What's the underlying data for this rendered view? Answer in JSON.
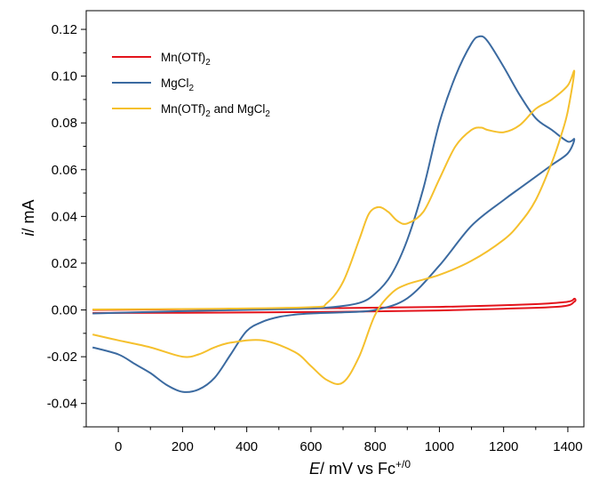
{
  "chart_data": {
    "type": "line",
    "title": "",
    "xlabel": {
      "italic": "E",
      "rest": "/ mV vs Fc",
      "sup": "+/0"
    },
    "ylabel": {
      "italic": "i",
      "rest": "/ mA"
    },
    "xlim": [
      -100,
      1450
    ],
    "ylim": [
      -0.05,
      0.128
    ],
    "xticks": [
      0,
      200,
      400,
      600,
      800,
      1000,
      1200,
      1400
    ],
    "xtick_labels": [
      "0",
      "200",
      "400",
      "600",
      "800",
      "1000",
      "1200",
      "1400"
    ],
    "yticks": [
      -0.04,
      -0.02,
      0.0,
      0.02,
      0.04,
      0.06,
      0.08,
      0.1,
      0.12
    ],
    "ytick_labels": [
      "-0.04",
      "-0.02",
      "0.00",
      "0.02",
      "0.04",
      "0.06",
      "0.08",
      "0.10",
      "0.12"
    ],
    "grid": false,
    "legend_position": "top-left",
    "series": [
      {
        "name": "Mn(OTf)2",
        "legend": {
          "a": "Mn(OTf)",
          "sub": "2",
          "b": "",
          "sub2": ""
        },
        "color": "#e3141c",
        "x": [
          -80,
          200,
          600,
          1000,
          1300,
          1400,
          1420,
          1420,
          1380,
          1200,
          1000,
          800,
          600,
          200,
          -80
        ],
        "y": [
          0.0,
          0.0003,
          0.0007,
          0.0013,
          0.0025,
          0.0035,
          0.0048,
          0.0035,
          0.0015,
          0.0005,
          -0.0002,
          -0.0006,
          -0.0009,
          -0.0012,
          -0.0013
        ]
      },
      {
        "name": "MgCl2",
        "legend": {
          "a": "MgCl",
          "sub": "2",
          "b": "",
          "sub2": ""
        },
        "color": "#3b6aa0",
        "x": [
          -80,
          200,
          500,
          650,
          750,
          800,
          850,
          900,
          950,
          1000,
          1050,
          1100,
          1125,
          1150,
          1200,
          1250,
          1300,
          1350,
          1400,
          1420,
          1400,
          1350,
          1300,
          1250,
          1200,
          1100,
          1000,
          900,
          800,
          700,
          600,
          550,
          500,
          450,
          400,
          350,
          300,
          250,
          200,
          150,
          100,
          50,
          0,
          -80
        ],
        "y": [
          -0.0015,
          -0.0005,
          0.0003,
          0.001,
          0.003,
          0.007,
          0.015,
          0.03,
          0.052,
          0.08,
          0.1,
          0.114,
          0.117,
          0.115,
          0.104,
          0.092,
          0.082,
          0.077,
          0.072,
          0.073,
          0.067,
          0.062,
          0.057,
          0.052,
          0.047,
          0.036,
          0.019,
          0.005,
          0.0,
          -0.001,
          -0.0015,
          -0.002,
          -0.003,
          -0.005,
          -0.009,
          -0.019,
          -0.029,
          -0.034,
          -0.035,
          -0.032,
          -0.027,
          -0.023,
          -0.019,
          -0.016
        ]
      },
      {
        "name": "Mn(OTf)2 and MgCl2",
        "legend": {
          "a": "Mn(OTf)",
          "sub": "2",
          "b": " and MgCl",
          "sub2": "2"
        },
        "color": "#f5c02d",
        "x": [
          -80,
          300,
          600,
          650,
          700,
          750,
          780,
          810,
          840,
          870,
          900,
          950,
          1000,
          1050,
          1100,
          1130,
          1150,
          1200,
          1250,
          1300,
          1350,
          1400,
          1420,
          1400,
          1380,
          1350,
          1300,
          1250,
          1200,
          1100,
          1000,
          900,
          850,
          800,
          750,
          700,
          650,
          600,
          550,
          450,
          350,
          300,
          250,
          200,
          100,
          0,
          -80
        ],
        "y": [
          0.0002,
          0.0005,
          0.0012,
          0.003,
          0.012,
          0.03,
          0.041,
          0.044,
          0.042,
          0.038,
          0.037,
          0.042,
          0.056,
          0.07,
          0.077,
          0.078,
          0.077,
          0.076,
          0.079,
          0.086,
          0.09,
          0.096,
          0.102,
          0.085,
          0.075,
          0.063,
          0.047,
          0.037,
          0.03,
          0.021,
          0.015,
          0.011,
          0.007,
          -0.002,
          -0.02,
          -0.031,
          -0.03,
          -0.024,
          -0.018,
          -0.013,
          -0.014,
          -0.016,
          -0.019,
          -0.02,
          -0.016,
          -0.013,
          -0.0105
        ]
      }
    ]
  }
}
